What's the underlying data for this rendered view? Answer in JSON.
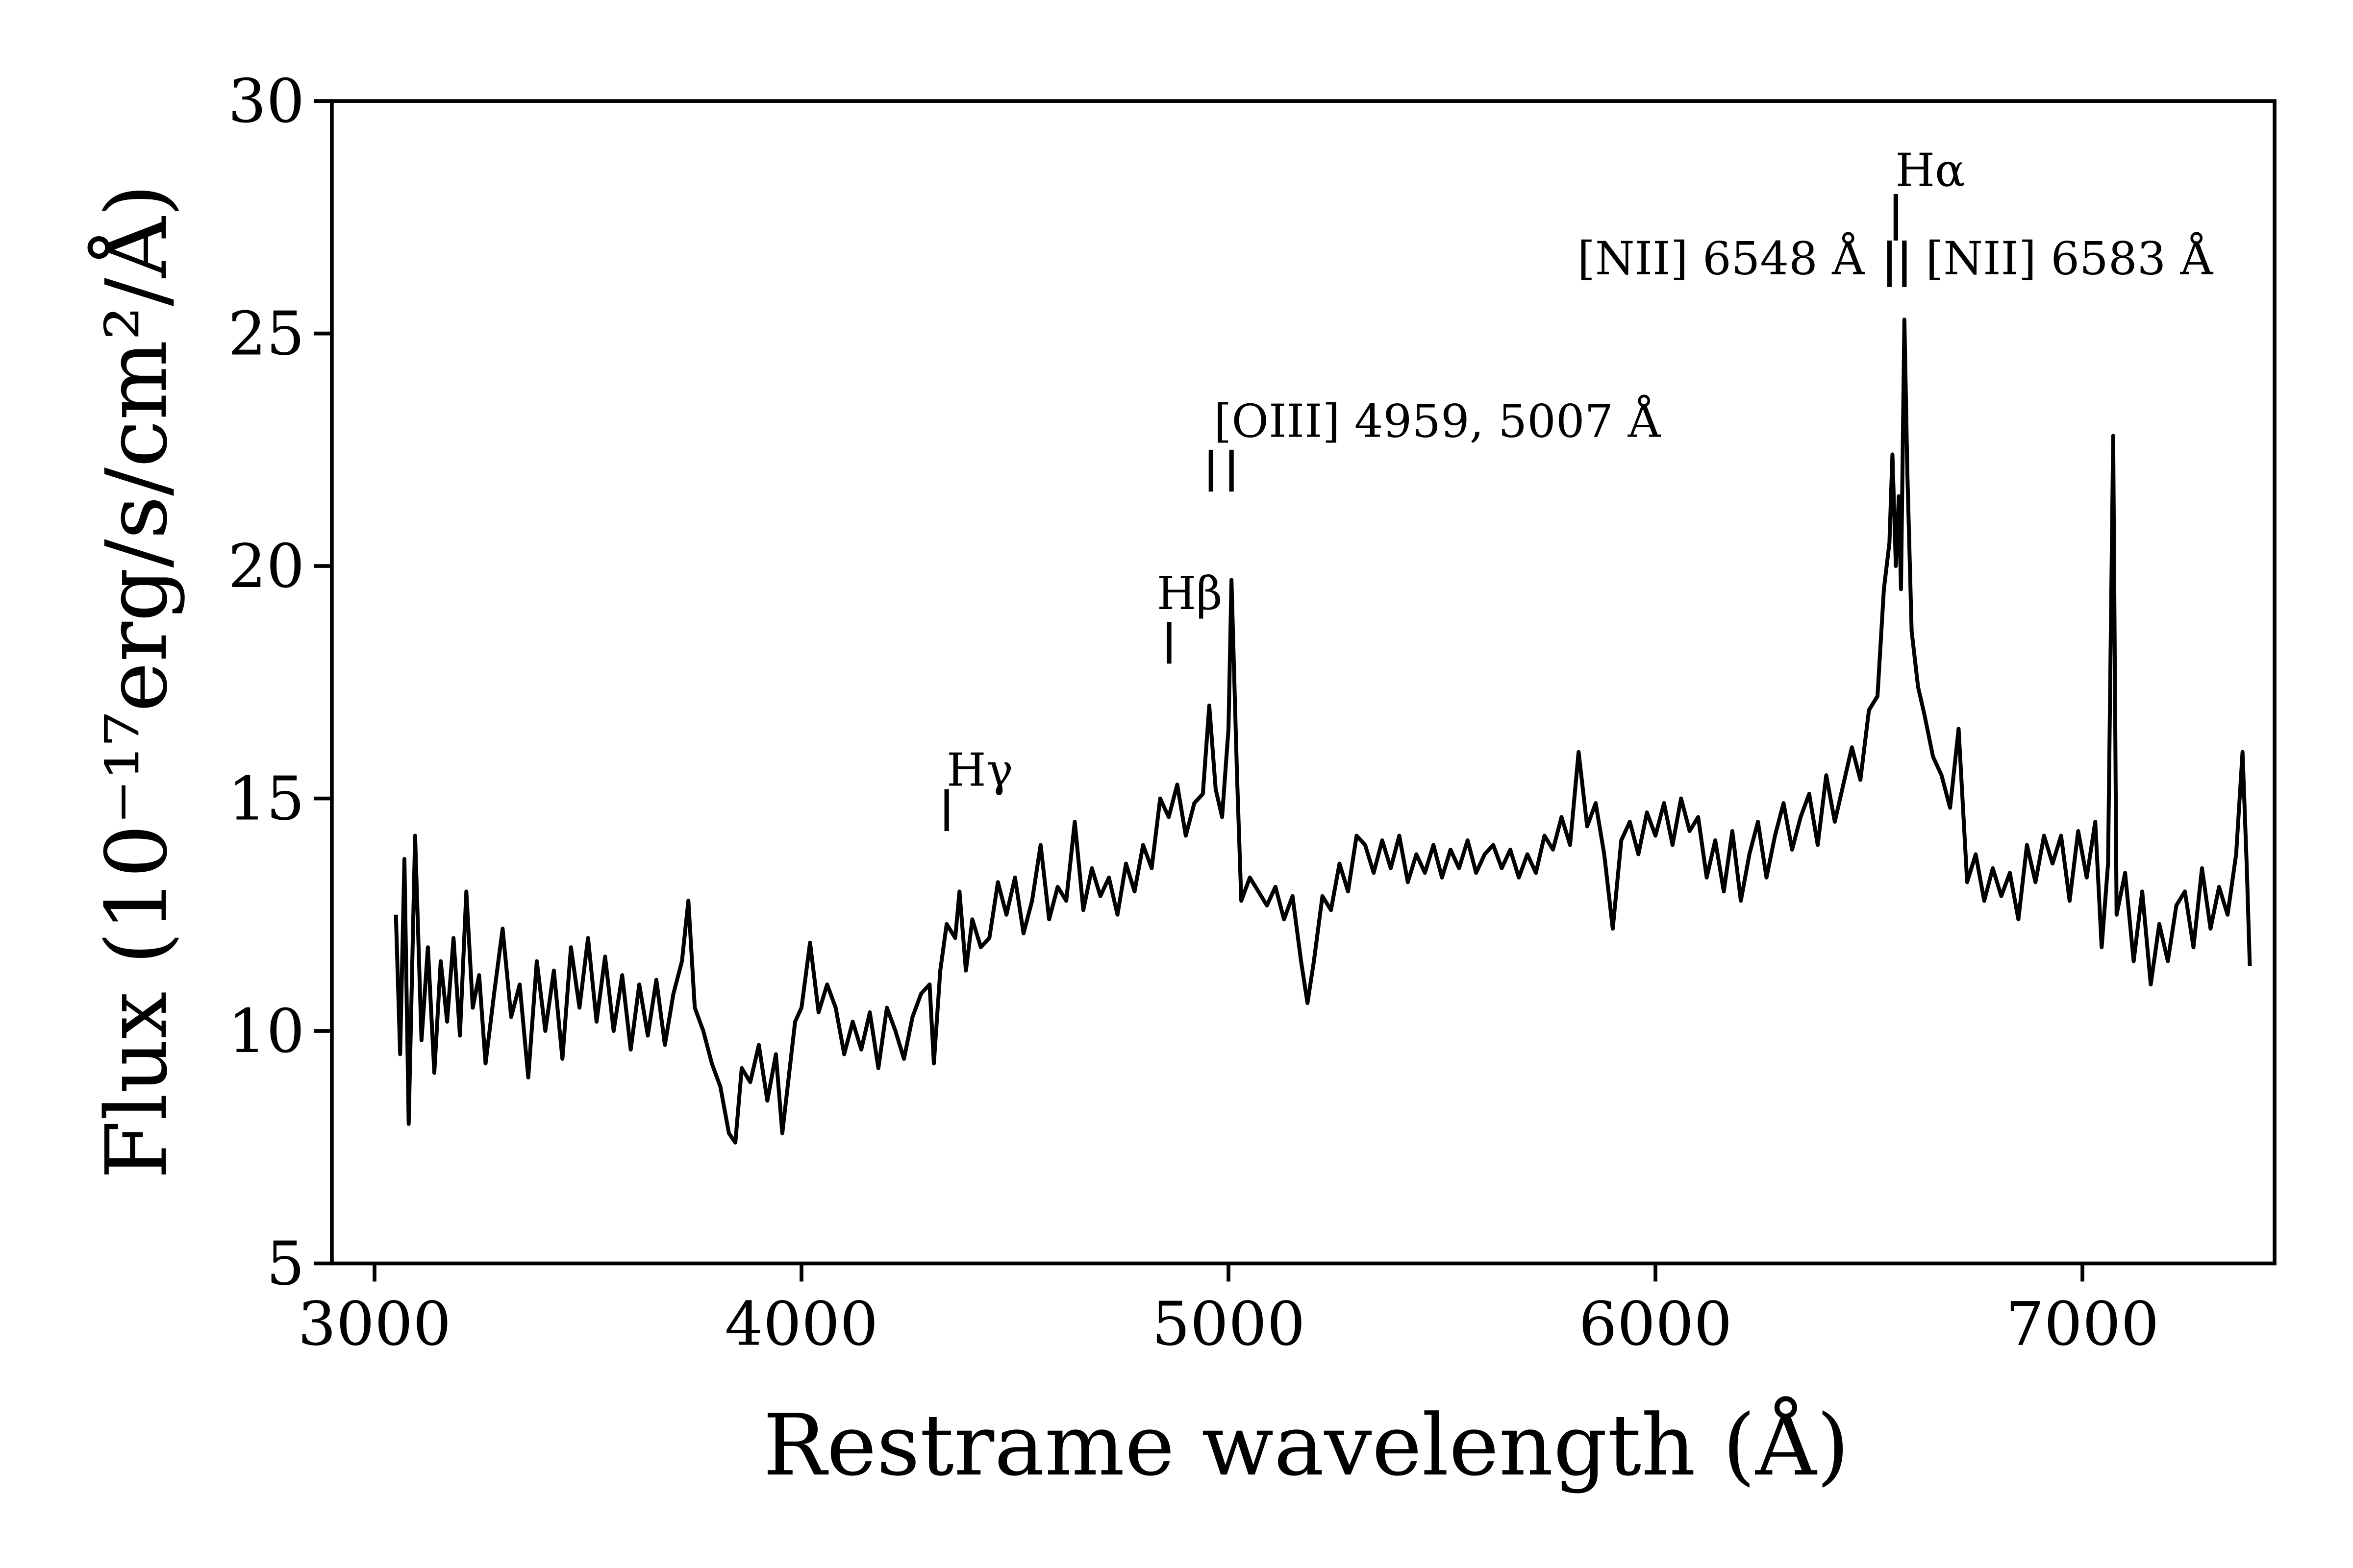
{
  "chart_data": {
    "type": "line",
    "xlabel": "Restrame wavelength (Å)",
    "ylabel": "Flux (10⁻¹⁷erg/s/cm²/Å)",
    "color": "#000000",
    "xlim": [
      2900,
      7450
    ],
    "ylim": [
      5,
      30
    ],
    "xticks": [
      3000,
      4000,
      5000,
      6000,
      7000
    ],
    "yticks": [
      5,
      10,
      15,
      20,
      25,
      30
    ],
    "grid": false,
    "x": [
      3050,
      3060,
      3070,
      3080,
      3095,
      3110,
      3125,
      3140,
      3155,
      3170,
      3185,
      3200,
      3215,
      3230,
      3245,
      3260,
      3280,
      3300,
      3320,
      3340,
      3360,
      3380,
      3400,
      3420,
      3440,
      3460,
      3480,
      3500,
      3520,
      3540,
      3560,
      3580,
      3600,
      3620,
      3640,
      3660,
      3680,
      3700,
      3720,
      3735,
      3750,
      3770,
      3790,
      3810,
      3830,
      3845,
      3860,
      3880,
      3900,
      3920,
      3940,
      3955,
      3970,
      3985,
      4000,
      4020,
      4040,
      4060,
      4080,
      4100,
      4120,
      4140,
      4160,
      4180,
      4200,
      4220,
      4240,
      4260,
      4280,
      4300,
      4310,
      4325,
      4340,
      4360,
      4370,
      4385,
      4400,
      4420,
      4440,
      4460,
      4480,
      4500,
      4520,
      4540,
      4560,
      4580,
      4600,
      4620,
      4640,
      4660,
      4680,
      4700,
      4720,
      4740,
      4760,
      4780,
      4800,
      4820,
      4840,
      4860,
      4880,
      4900,
      4920,
      4940,
      4955,
      4970,
      4985,
      5000,
      5007,
      5020,
      5030,
      5050,
      5070,
      5090,
      5110,
      5130,
      5150,
      5170,
      5185,
      5200,
      5220,
      5240,
      5260,
      5280,
      5300,
      5320,
      5340,
      5360,
      5380,
      5400,
      5420,
      5440,
      5460,
      5480,
      5500,
      5520,
      5540,
      5560,
      5580,
      5600,
      5620,
      5640,
      5660,
      5680,
      5700,
      5720,
      5740,
      5760,
      5780,
      5800,
      5820,
      5840,
      5860,
      5880,
      5900,
      5920,
      5940,
      5960,
      5980,
      6000,
      6020,
      6040,
      6060,
      6080,
      6100,
      6120,
      6140,
      6160,
      6180,
      6200,
      6220,
      6240,
      6260,
      6280,
      6300,
      6320,
      6340,
      6360,
      6380,
      6400,
      6420,
      6440,
      6460,
      6480,
      6500,
      6520,
      6535,
      6548,
      6555,
      6563,
      6570,
      6575,
      6583,
      6590,
      6600,
      6615,
      6630,
      6650,
      6670,
      6690,
      6710,
      6730,
      6750,
      6770,
      6790,
      6810,
      6830,
      6850,
      6870,
      6890,
      6910,
      6930,
      6950,
      6970,
      6990,
      7010,
      7030,
      7045,
      7060,
      7072,
      7080,
      7100,
      7120,
      7140,
      7160,
      7180,
      7200,
      7220,
      7240,
      7260,
      7280,
      7300,
      7320,
      7340,
      7360,
      7375,
      7385,
      7392
    ],
    "values": [
      12.5,
      9.5,
      13.7,
      8.0,
      14.2,
      9.8,
      11.8,
      9.1,
      11.5,
      10.2,
      12.0,
      9.9,
      13.0,
      10.5,
      11.2,
      9.3,
      10.8,
      12.2,
      10.3,
      11.0,
      9.0,
      11.5,
      10.0,
      11.3,
      9.4,
      11.8,
      10.5,
      12.0,
      10.2,
      11.6,
      10.0,
      11.2,
      9.6,
      11.0,
      9.9,
      11.1,
      9.7,
      10.8,
      11.5,
      12.8,
      10.5,
      10.0,
      9.3,
      8.8,
      7.8,
      7.6,
      9.2,
      8.9,
      9.7,
      8.5,
      9.5,
      7.8,
      9.0,
      10.2,
      10.5,
      11.9,
      10.4,
      11.0,
      10.5,
      9.5,
      10.2,
      9.6,
      10.4,
      9.2,
      10.5,
      10.0,
      9.4,
      10.3,
      10.8,
      11.0,
      9.3,
      11.3,
      12.3,
      12.0,
      13.0,
      11.3,
      12.4,
      11.8,
      12.0,
      13.2,
      12.5,
      13.3,
      12.1,
      12.8,
      14.0,
      12.4,
      13.1,
      12.8,
      14.5,
      12.6,
      13.5,
      12.9,
      13.3,
      12.5,
      13.6,
      13.0,
      14.0,
      13.5,
      15.0,
      14.6,
      15.3,
      14.2,
      14.9,
      15.1,
      17.0,
      15.2,
      14.6,
      16.5,
      19.7,
      15.5,
      12.8,
      13.3,
      13.0,
      12.7,
      13.1,
      12.4,
      12.9,
      11.5,
      10.6,
      11.5,
      12.9,
      12.6,
      13.6,
      13.0,
      14.2,
      14.0,
      13.4,
      14.1,
      13.5,
      14.2,
      13.2,
      13.8,
      13.4,
      14.0,
      13.3,
      13.9,
      13.5,
      14.1,
      13.4,
      13.8,
      14.0,
      13.5,
      13.9,
      13.3,
      13.8,
      13.4,
      14.2,
      13.9,
      14.6,
      14.0,
      16.0,
      14.4,
      14.9,
      13.8,
      12.2,
      14.1,
      14.5,
      13.8,
      14.7,
      14.2,
      14.9,
      14.0,
      15.0,
      14.3,
      14.6,
      13.3,
      14.1,
      13.0,
      14.3,
      12.8,
      13.8,
      14.5,
      13.3,
      14.2,
      14.9,
      13.9,
      14.6,
      15.1,
      14.0,
      15.5,
      14.5,
      15.3,
      16.1,
      15.4,
      16.9,
      17.2,
      19.5,
      20.5,
      22.4,
      20.0,
      21.5,
      19.5,
      25.3,
      22.0,
      18.6,
      17.4,
      16.8,
      15.9,
      15.5,
      14.8,
      16.5,
      13.2,
      13.8,
      12.8,
      13.5,
      12.9,
      13.4,
      12.4,
      14.0,
      13.2,
      14.2,
      13.6,
      14.2,
      12.8,
      14.3,
      13.3,
      14.5,
      11.8,
      13.6,
      22.8,
      12.5,
      13.4,
      11.5,
      13.0,
      11.0,
      12.3,
      11.5,
      12.7,
      13.0,
      11.8,
      13.5,
      12.2,
      13.1,
      12.5,
      13.8,
      16.0,
      13.5,
      11.4
    ],
    "annotations": [
      {
        "text": "Hγ",
        "x": 4340,
        "y": 15.6,
        "lines": [
          4340
        ],
        "line_y": [
          14.3,
          15.2
        ]
      },
      {
        "text": "Hβ",
        "x": 4832,
        "y": 19.4,
        "lines": [
          4861
        ],
        "line_y": [
          17.9,
          18.8
        ]
      },
      {
        "text": "[OIII] 4959, 5007 Å",
        "x": 4966,
        "y": 23.1,
        "lines": [
          4959,
          5007
        ],
        "line_y": [
          21.6,
          22.5
        ]
      },
      {
        "text": "Hα",
        "x": 6562,
        "y": 28.5,
        "lines": [
          6563
        ],
        "line_y": [
          27.0,
          28.0
        ]
      },
      {
        "text": "[NII] 6548 Å",
        "x": 6490,
        "y": 26.6,
        "align": "right",
        "lines": [
          6548
        ],
        "line_y": [
          26.0,
          27.0
        ]
      },
      {
        "text": "[NII] 6583 Å",
        "x": 6633,
        "y": 26.6,
        "lines": [
          6583
        ],
        "line_y": [
          26.0,
          27.0
        ]
      }
    ]
  }
}
